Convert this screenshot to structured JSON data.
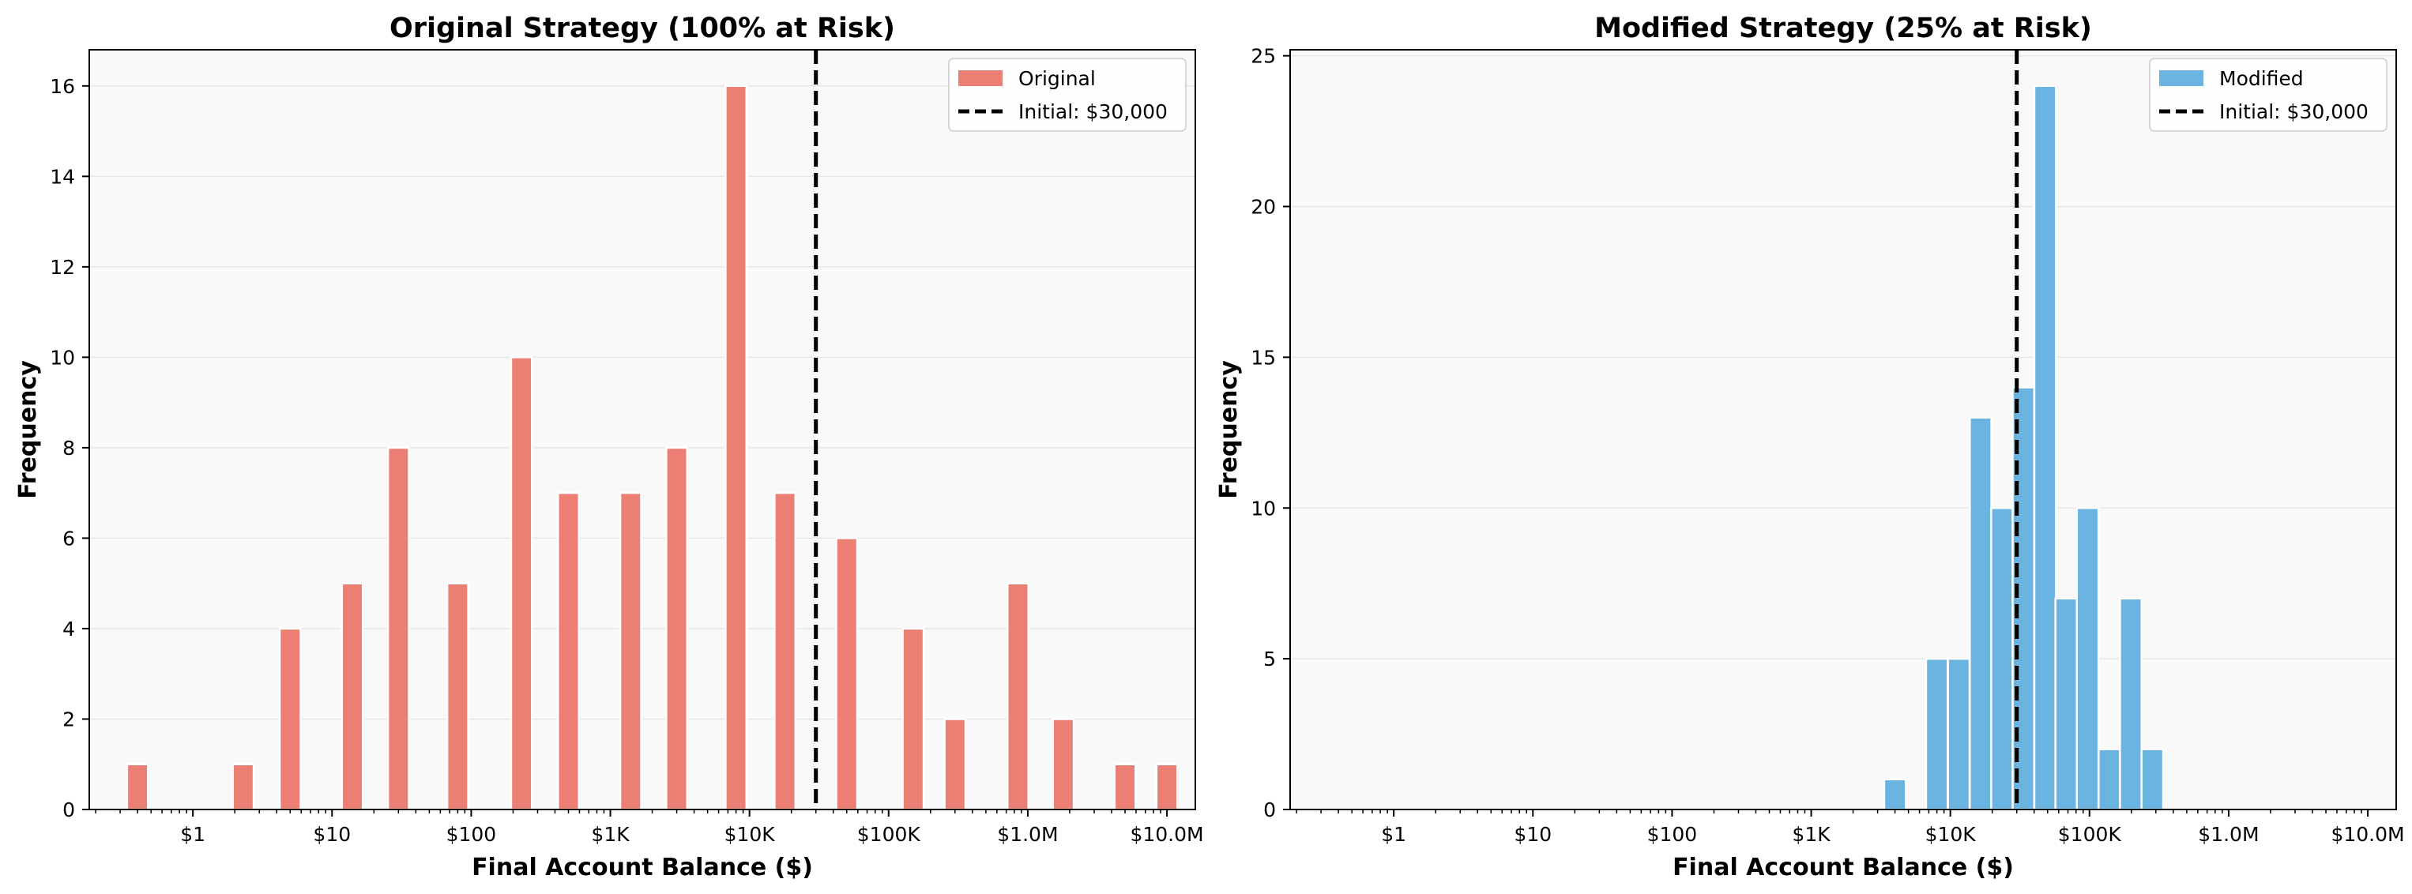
{
  "chart_data": [
    {
      "type": "bar",
      "title": "Original Strategy (100% at Risk)",
      "xlabel": "Final Account Balance ($)",
      "ylabel": "Frequency",
      "x_scale": "log",
      "xlim": [
        0.18,
        16000000
      ],
      "ylim": [
        0,
        16.8
      ],
      "xticks": [
        {
          "value": 1,
          "label": "$1"
        },
        {
          "value": 10,
          "label": "$10"
        },
        {
          "value": 100,
          "label": "$100"
        },
        {
          "value": 1000,
          "label": "$1K"
        },
        {
          "value": 10000,
          "label": "$10K"
        },
        {
          "value": 100000,
          "label": "$100K"
        },
        {
          "value": 1000000,
          "label": "$1.0M"
        },
        {
          "value": 10000000,
          "label": "$10.0M"
        }
      ],
      "yticks": [
        0,
        2,
        4,
        6,
        8,
        10,
        12,
        14,
        16
      ],
      "bar_log_width": 0.15,
      "bars": [
        {
          "x": 0.4,
          "count": 1
        },
        {
          "x": 2.3,
          "count": 1
        },
        {
          "x": 5,
          "count": 4
        },
        {
          "x": 14,
          "count": 5
        },
        {
          "x": 30,
          "count": 8
        },
        {
          "x": 80,
          "count": 5
        },
        {
          "x": 230,
          "count": 10
        },
        {
          "x": 500,
          "count": 7
        },
        {
          "x": 1400,
          "count": 7
        },
        {
          "x": 3000,
          "count": 8
        },
        {
          "x": 8000,
          "count": 16
        },
        {
          "x": 18000,
          "count": 7
        },
        {
          "x": 50000,
          "count": 6
        },
        {
          "x": 150000,
          "count": 4
        },
        {
          "x": 300000,
          "count": 2
        },
        {
          "x": 850000,
          "count": 5
        },
        {
          "x": 1800000,
          "count": 2
        },
        {
          "x": 5000000,
          "count": 1
        },
        {
          "x": 10000000,
          "count": 1
        }
      ],
      "vline": {
        "x": 30000,
        "label": "Initial: $30,000"
      },
      "legend": {
        "position": "top-right",
        "entries": [
          "Original",
          "Initial: $30,000"
        ]
      },
      "colors": {
        "bar": "#ec7f74",
        "bar_edge": "#ffffff",
        "vline": "#000000",
        "plot_bg": "#f9f9f9"
      },
      "grid": "y"
    },
    {
      "type": "bar",
      "title": "Modified Strategy (25% at Risk)",
      "xlabel": "Final Account Balance ($)",
      "ylabel": "Frequency",
      "x_scale": "log",
      "xlim": [
        0.18,
        16000000
      ],
      "ylim": [
        0,
        25.2
      ],
      "xticks": [
        {
          "value": 1,
          "label": "$1"
        },
        {
          "value": 10,
          "label": "$10"
        },
        {
          "value": 100,
          "label": "$100"
        },
        {
          "value": 1000,
          "label": "$1K"
        },
        {
          "value": 10000,
          "label": "$10K"
        },
        {
          "value": 100000,
          "label": "$100K"
        },
        {
          "value": 1000000,
          "label": "$1.0M"
        },
        {
          "value": 10000000,
          "label": "$10.0M"
        }
      ],
      "yticks": [
        0,
        5,
        10,
        15,
        20,
        25
      ],
      "bar_log_width": 0.155,
      "bars": [
        {
          "x": 4000,
          "count": 1
        },
        {
          "x": 8000,
          "count": 5
        },
        {
          "x": 11500,
          "count": 5
        },
        {
          "x": 16500,
          "count": 13
        },
        {
          "x": 23500,
          "count": 10
        },
        {
          "x": 33500,
          "count": 14
        },
        {
          "x": 48000,
          "count": 24
        },
        {
          "x": 68000,
          "count": 7
        },
        {
          "x": 97000,
          "count": 10
        },
        {
          "x": 139000,
          "count": 2
        },
        {
          "x": 198000,
          "count": 7
        },
        {
          "x": 283000,
          "count": 2
        }
      ],
      "vline": {
        "x": 30000,
        "label": "Initial: $30,000"
      },
      "legend": {
        "position": "top-right",
        "entries": [
          "Modified",
          "Initial: $30,000"
        ]
      },
      "colors": {
        "bar": "#6bb3e0",
        "bar_edge": "#ffffff",
        "vline": "#000000",
        "plot_bg": "#f9f9f9"
      },
      "grid": "y"
    }
  ]
}
